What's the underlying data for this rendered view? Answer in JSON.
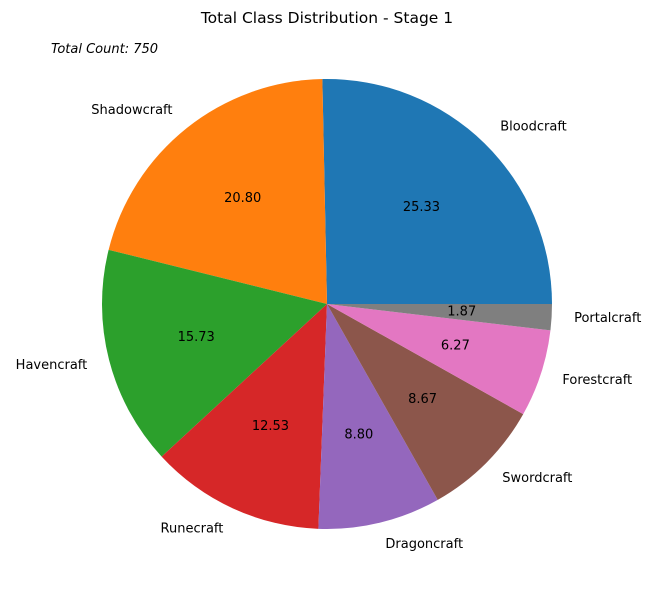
{
  "chart_data": {
    "type": "pie",
    "title": "Total Class Distribution - Stage 1",
    "annotation": "Total Count: 750",
    "categories": [
      "Bloodcraft",
      "Shadowcraft",
      "Havencraft",
      "Runecraft",
      "Dragoncraft",
      "Swordcraft",
      "Forestcraft",
      "Portalcraft"
    ],
    "values": [
      25.33,
      20.8,
      15.73,
      12.53,
      8.8,
      8.67,
      6.27,
      1.87
    ],
    "value_labels": [
      "25.33",
      "20.80",
      "15.73",
      "12.53",
      "8.80",
      "8.67",
      "6.27",
      "1.87"
    ],
    "colors": [
      "#1f77b4",
      "#ff7f0e",
      "#2ca02c",
      "#d62728",
      "#9467bd",
      "#8c564b",
      "#e377c2",
      "#7f7f7f"
    ],
    "start_angle_deg": 0,
    "direction": "counterclockwise",
    "legend": "none"
  }
}
